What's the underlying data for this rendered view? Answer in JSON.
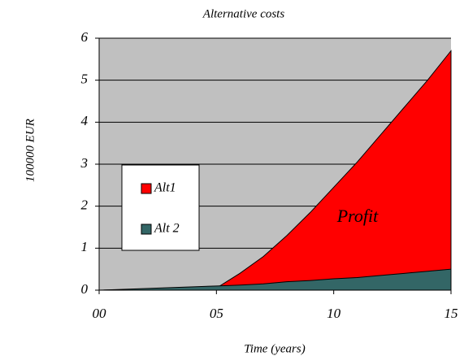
{
  "chart_data": {
    "type": "area",
    "title": "Alternative costs",
    "x_label": "Time (years)",
    "y_label": "100000 EUR",
    "annotation": "Profit",
    "x": [
      0,
      5,
      6,
      7,
      8,
      9,
      10,
      11,
      12,
      13,
      14,
      15
    ],
    "series": [
      {
        "name": "Alt1",
        "color": "#ff0000",
        "values": [
          0,
          0.05,
          0.4,
          0.8,
          1.3,
          1.85,
          2.45,
          3.05,
          3.7,
          4.35,
          5.0,
          5.7
        ]
      },
      {
        "name": "Alt 2",
        "color": "#336666",
        "values": [
          0,
          0.1,
          0.12,
          0.15,
          0.2,
          0.23,
          0.27,
          0.3,
          0.35,
          0.4,
          0.45,
          0.5
        ]
      }
    ],
    "xlim": [
      0,
      15
    ],
    "xticks": [
      {
        "value": 0,
        "label": "00"
      },
      {
        "value": 5,
        "label": "05"
      },
      10,
      15
    ],
    "ylim": [
      0,
      6
    ],
    "yticks": [
      0,
      1,
      2,
      3,
      4,
      5,
      6
    ],
    "grid": true,
    "legend": "left"
  }
}
